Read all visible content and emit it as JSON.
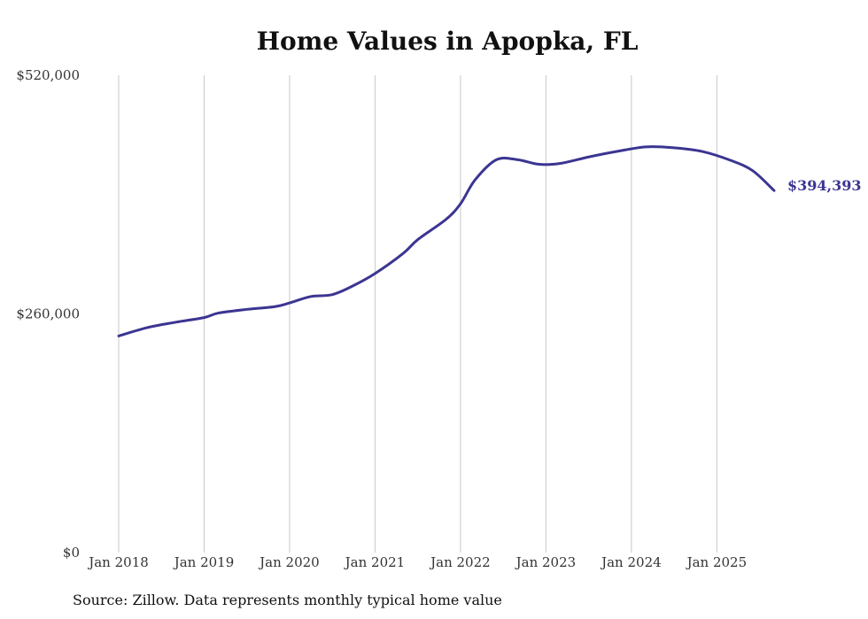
{
  "chart_data": {
    "type": "line",
    "title": "Home Values in Apopka, FL",
    "xlabel": "",
    "ylabel": "",
    "ylim": [
      0,
      520000
    ],
    "yticks": [
      {
        "value": 0,
        "label": "$0"
      },
      {
        "value": 260000,
        "label": "$260,000"
      },
      {
        "value": 520000,
        "label": "$520,000"
      }
    ],
    "xticks": [
      {
        "x": 2018,
        "label": "Jan 2018"
      },
      {
        "x": 2019,
        "label": "Jan 2019"
      },
      {
        "x": 2020,
        "label": "Jan 2020"
      },
      {
        "x": 2021,
        "label": "Jan 2021"
      },
      {
        "x": 2022,
        "label": "Jan 2022"
      },
      {
        "x": 2023,
        "label": "Jan 2023"
      },
      {
        "x": 2024,
        "label": "Jan 2024"
      },
      {
        "x": 2025,
        "label": "Jan 2025"
      }
    ],
    "xlim": [
      2018,
      2025.67
    ],
    "grid": "vertical",
    "series": [
      {
        "name": "Typical home value",
        "color": "#3b3592",
        "points": [
          [
            2018.0,
            236000
          ],
          [
            2018.33,
            245000
          ],
          [
            2018.67,
            251000
          ],
          [
            2019.0,
            256000
          ],
          [
            2019.17,
            261000
          ],
          [
            2019.5,
            265000
          ],
          [
            2019.83,
            268000
          ],
          [
            2020.0,
            272000
          ],
          [
            2020.25,
            279000
          ],
          [
            2020.5,
            281000
          ],
          [
            2020.75,
            291000
          ],
          [
            2021.0,
            304000
          ],
          [
            2021.33,
            326000
          ],
          [
            2021.5,
            341000
          ],
          [
            2021.83,
            363000
          ],
          [
            2022.0,
            380000
          ],
          [
            2022.17,
            406000
          ],
          [
            2022.42,
            428000
          ],
          [
            2022.67,
            428000
          ],
          [
            2022.92,
            423000
          ],
          [
            2023.17,
            424000
          ],
          [
            2023.5,
            431000
          ],
          [
            2023.83,
            437000
          ],
          [
            2024.17,
            442000
          ],
          [
            2024.5,
            441000
          ],
          [
            2024.83,
            437000
          ],
          [
            2025.17,
            427000
          ],
          [
            2025.42,
            416000
          ],
          [
            2025.67,
            394393
          ]
        ],
        "end_label": "$394,393"
      }
    ]
  },
  "footer": {
    "source": "Source: Zillow. Data represents monthly typical home value"
  }
}
